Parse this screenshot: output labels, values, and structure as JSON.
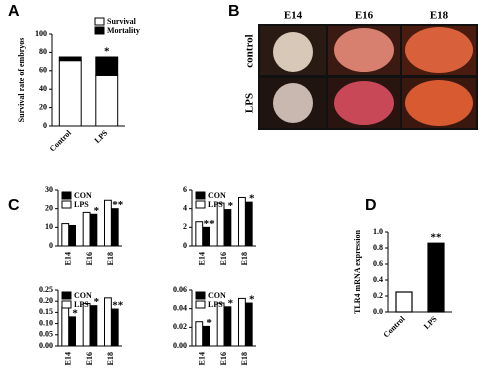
{
  "panel_labels": [
    "A",
    "B",
    "C",
    "D"
  ],
  "image_grid": {
    "columns": [
      "E14",
      "E16",
      "E18"
    ],
    "rows": [
      "control",
      "LPS"
    ]
  },
  "chart_data": [
    {
      "type": "stacked_bar",
      "ylabel": "Survival rate of embryos",
      "categories": [
        "Control",
        "LPS"
      ],
      "series": [
        {
          "name": "Survival",
          "color": "#ffffff",
          "values": [
            71,
            55
          ]
        },
        {
          "name": "Mortality",
          "color": "#000000",
          "values": [
            4,
            20
          ],
          "markers": [
            null,
            "*"
          ]
        }
      ],
      "ylim": [
        0,
        100
      ],
      "yticks": [
        0,
        20,
        40,
        60,
        80,
        100
      ],
      "legend": "upper right"
    },
    {
      "type": "grouped_bar",
      "categories": [
        "E14",
        "E16",
        "E18"
      ],
      "series": [
        {
          "name": "CON",
          "color": "#000000",
          "values": [
            11,
            17,
            20
          ],
          "markers": [
            null,
            "*",
            "**"
          ]
        },
        {
          "name": "LPS",
          "color": "#ffffff",
          "values": [
            12,
            18,
            24.5
          ]
        }
      ],
      "ylim": [
        0,
        30
      ],
      "yticks": [
        0,
        10,
        20,
        30
      ],
      "legend": "upper left"
    },
    {
      "type": "grouped_bar",
      "categories": [
        "E14",
        "E16",
        "E18"
      ],
      "series": [
        {
          "name": "CON",
          "color": "#000000",
          "values": [
            2.0,
            3.9,
            4.7
          ],
          "markers": [
            "**",
            "*",
            "*"
          ]
        },
        {
          "name": "LPS",
          "color": "#ffffff",
          "values": [
            2.6,
            4.6,
            5.2
          ]
        }
      ],
      "ylim": [
        0,
        6
      ],
      "yticks": [
        0,
        2,
        4,
        6
      ],
      "legend": "upper left"
    },
    {
      "type": "grouped_bar",
      "categories": [
        "E14",
        "E16",
        "E18"
      ],
      "series": [
        {
          "name": "CON",
          "color": "#000000",
          "values": [
            0.13,
            0.18,
            0.165
          ],
          "markers": [
            "*",
            "*",
            "**"
          ]
        },
        {
          "name": "LPS",
          "color": "#ffffff",
          "values": [
            0.175,
            0.19,
            0.215
          ]
        }
      ],
      "ylim": [
        0,
        0.25
      ],
      "yticks": [
        {
          "value": 0,
          "label": "0.00"
        },
        {
          "value": 0.05,
          "label": "0.05"
        },
        {
          "value": 0.1,
          "label": "0.10"
        },
        {
          "value": 0.15,
          "label": "0.15"
        },
        {
          "value": 0.2,
          "label": "0.20"
        },
        {
          "value": 0.25,
          "label": "0.25"
        }
      ],
      "legend": "upper left"
    },
    {
      "type": "grouped_bar",
      "categories": [
        "E14",
        "E16",
        "E18"
      ],
      "series": [
        {
          "name": "CON",
          "color": "#000000",
          "values": [
            0.021,
            0.042,
            0.046
          ],
          "markers": [
            "*",
            "*",
            "*"
          ]
        },
        {
          "name": "LPS",
          "color": "#ffffff",
          "values": [
            0.026,
            0.046,
            0.051
          ]
        }
      ],
      "ylim": [
        0,
        0.06
      ],
      "yticks": [
        {
          "value": 0,
          "label": "0.00"
        },
        {
          "value": 0.02,
          "label": "0.02"
        },
        {
          "value": 0.04,
          "label": "0.04"
        },
        {
          "value": 0.06,
          "label": "0.06"
        }
      ],
      "legend": "upper left"
    },
    {
      "type": "bar",
      "ylabel": "TLR4 mRNA expression",
      "categories": [
        "Control",
        "LPS"
      ],
      "values": [
        0.25,
        0.86
      ],
      "colors": [
        "#ffffff",
        "#000000"
      ],
      "markers": [
        null,
        "**"
      ],
      "ylim": [
        0,
        1.0
      ],
      "yticks": [
        {
          "value": 0,
          "label": "0.0"
        },
        {
          "value": 0.2,
          "label": "0.2"
        },
        {
          "value": 0.4,
          "label": "0.4"
        },
        {
          "value": 0.6,
          "label": "0.6"
        },
        {
          "value": 0.8,
          "label": "0.8"
        },
        {
          "value": 1.0,
          "label": "1.0"
        }
      ]
    }
  ]
}
